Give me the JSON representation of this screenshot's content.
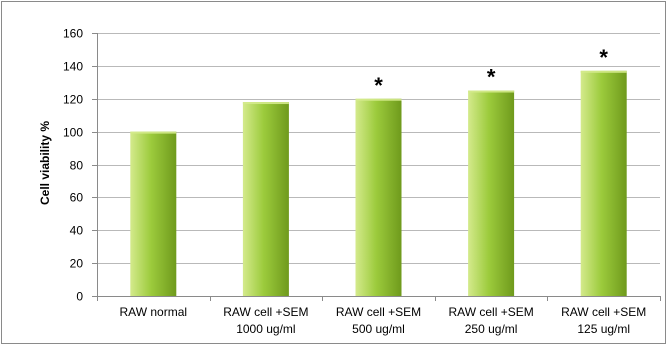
{
  "chart_data": {
    "type": "bar",
    "ylabel": "Cell viability %",
    "xlabel": "",
    "ylim": [
      0,
      160
    ],
    "yticks": [
      0,
      20,
      40,
      60,
      80,
      100,
      120,
      140,
      160
    ],
    "grid": "horizontal",
    "categories": [
      [
        "RAW normal"
      ],
      [
        "RAW cell +SEM",
        "1000 ug/ml"
      ],
      [
        "RAW cell +SEM",
        "500 ug/ml"
      ],
      [
        "RAW cell +SEM",
        "250 ug/ml"
      ],
      [
        "RAW cell +SEM",
        "125 ug/ml"
      ]
    ],
    "values": [
      100,
      118,
      120,
      125,
      137
    ],
    "annotations": [
      "",
      "",
      "*",
      "*",
      "*"
    ],
    "colors": {
      "bar_light": "#d4ea8c",
      "bar_mid": "#9ccb3c",
      "bar_dark": "#6f9a1c",
      "grid": "#b9b9b9",
      "axis": "#8a8a8a"
    }
  }
}
